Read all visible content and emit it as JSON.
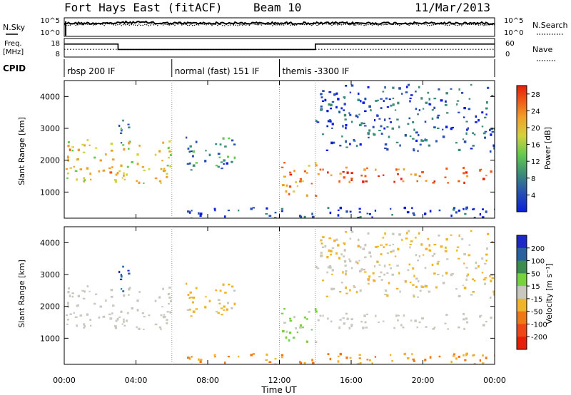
{
  "header": {
    "radar": "Fort Hays East (fitACF)",
    "beam": "Beam 10",
    "date": "11/Mar/2013"
  },
  "noise_panel": {
    "left_label": "N.Sky",
    "right_label": "N.Search",
    "y_ticks": [
      "10^5",
      "10^0"
    ]
  },
  "freq_panel": {
    "left_label_line1": "Freq.",
    "left_label_line2": "[MHz]",
    "right_label": "Nave",
    "left_ticks": [
      "18",
      "8"
    ],
    "right_ticks": [
      "60",
      "0"
    ],
    "freq_steps": [
      {
        "start_h": 0,
        "end_h": 3.0,
        "mhz": 14.4
      },
      {
        "start_h": 3.0,
        "end_h": 14.0,
        "mhz": 10.9
      },
      {
        "start_h": 14.0,
        "end_h": 24.0,
        "mhz": 14.4
      }
    ],
    "nave_level": 25
  },
  "cpid": {
    "label": "CPID",
    "segments": [
      {
        "start_h": 0,
        "end_h": 6,
        "text": "rbsp 200 IF"
      },
      {
        "start_h": 6,
        "end_h": 12,
        "text": "normal (fast) 151 IF"
      },
      {
        "start_h": 12,
        "end_h": 24,
        "text": "themis -3300 IF"
      }
    ]
  },
  "x_axis": {
    "label": "Time UT",
    "ticks": [
      "00:00",
      "04:00",
      "08:00",
      "12:00",
      "16:00",
      "20:00",
      "00:00"
    ],
    "tick_hours": [
      0,
      4,
      8,
      12,
      16,
      20,
      24
    ]
  },
  "power_panel": {
    "ylabel": "Slant Range [km]",
    "colorbar_label": "Power [dB]",
    "colorbar_ticks": [
      "28",
      "24",
      "20",
      "16",
      "12",
      "8",
      "4"
    ],
    "colors": [
      "#0a1edc",
      "#2850b4",
      "#3c8c78",
      "#64c850",
      "#d2d23c",
      "#f0a028",
      "#f05a14",
      "#e61e0a"
    ]
  },
  "velocity_panel": {
    "ylabel": "Slant Range [km]",
    "colorbar_label": "Velocity [m s⁻¹]",
    "colorbar_ticks": [
      "200",
      "100",
      "50",
      "15",
      "-15",
      "-50",
      "-100",
      "-200"
    ],
    "colors": [
      "#1e28c8",
      "#2860a0",
      "#3c8c50",
      "#78d23c",
      "#c8c8c0",
      "#f0b428",
      "#f07814",
      "#f04614",
      "#e61e0a"
    ]
  },
  "chart_data": {
    "type": "heatmap",
    "xlabel": "Time UT",
    "ylabel": "Slant Range [km]",
    "xlim_hours": [
      0,
      24
    ],
    "ylim_km": [
      180,
      4500
    ],
    "y_ticks_km": [
      1000,
      2000,
      3000,
      4000
    ],
    "power_scale_db": [
      0,
      30
    ],
    "velocity_scale": [
      -250,
      250
    ],
    "echo_regions": [
      {
        "name": "band-1",
        "start_h": 0.0,
        "end_h": 6.0,
        "range_km": [
          1300,
          2700
        ],
        "power_db": 18,
        "velocity": -5
      },
      {
        "name": "band-2",
        "start_h": 2.6,
        "end_h": 3.6,
        "range_km": [
          2500,
          3300
        ],
        "power_db": 10,
        "velocity": 200
      },
      {
        "name": "patch-evening",
        "start_h": 6.6,
        "end_h": 9.5,
        "range_km": [
          1700,
          2800
        ],
        "power_db": 8,
        "velocity": -40
      },
      {
        "name": "band-3",
        "start_h": 12.0,
        "end_h": 14.0,
        "range_km": [
          900,
          2100
        ],
        "power_db": 22,
        "velocity": 40
      },
      {
        "name": "band-4",
        "start_h": 14.0,
        "end_h": 24.0,
        "range_km": [
          1300,
          1800
        ],
        "power_db": 24,
        "velocity": 0
      },
      {
        "name": "high-range-echoes",
        "start_h": 14.0,
        "end_h": 24.0,
        "range_km": [
          2300,
          4400
        ],
        "power_db": 6,
        "velocity": -30
      },
      {
        "name": "near-range-groundscatter",
        "start_h": 6.0,
        "end_h": 24.0,
        "range_km": [
          180,
          550
        ],
        "power_db": 4,
        "velocity": -80
      }
    ]
  }
}
